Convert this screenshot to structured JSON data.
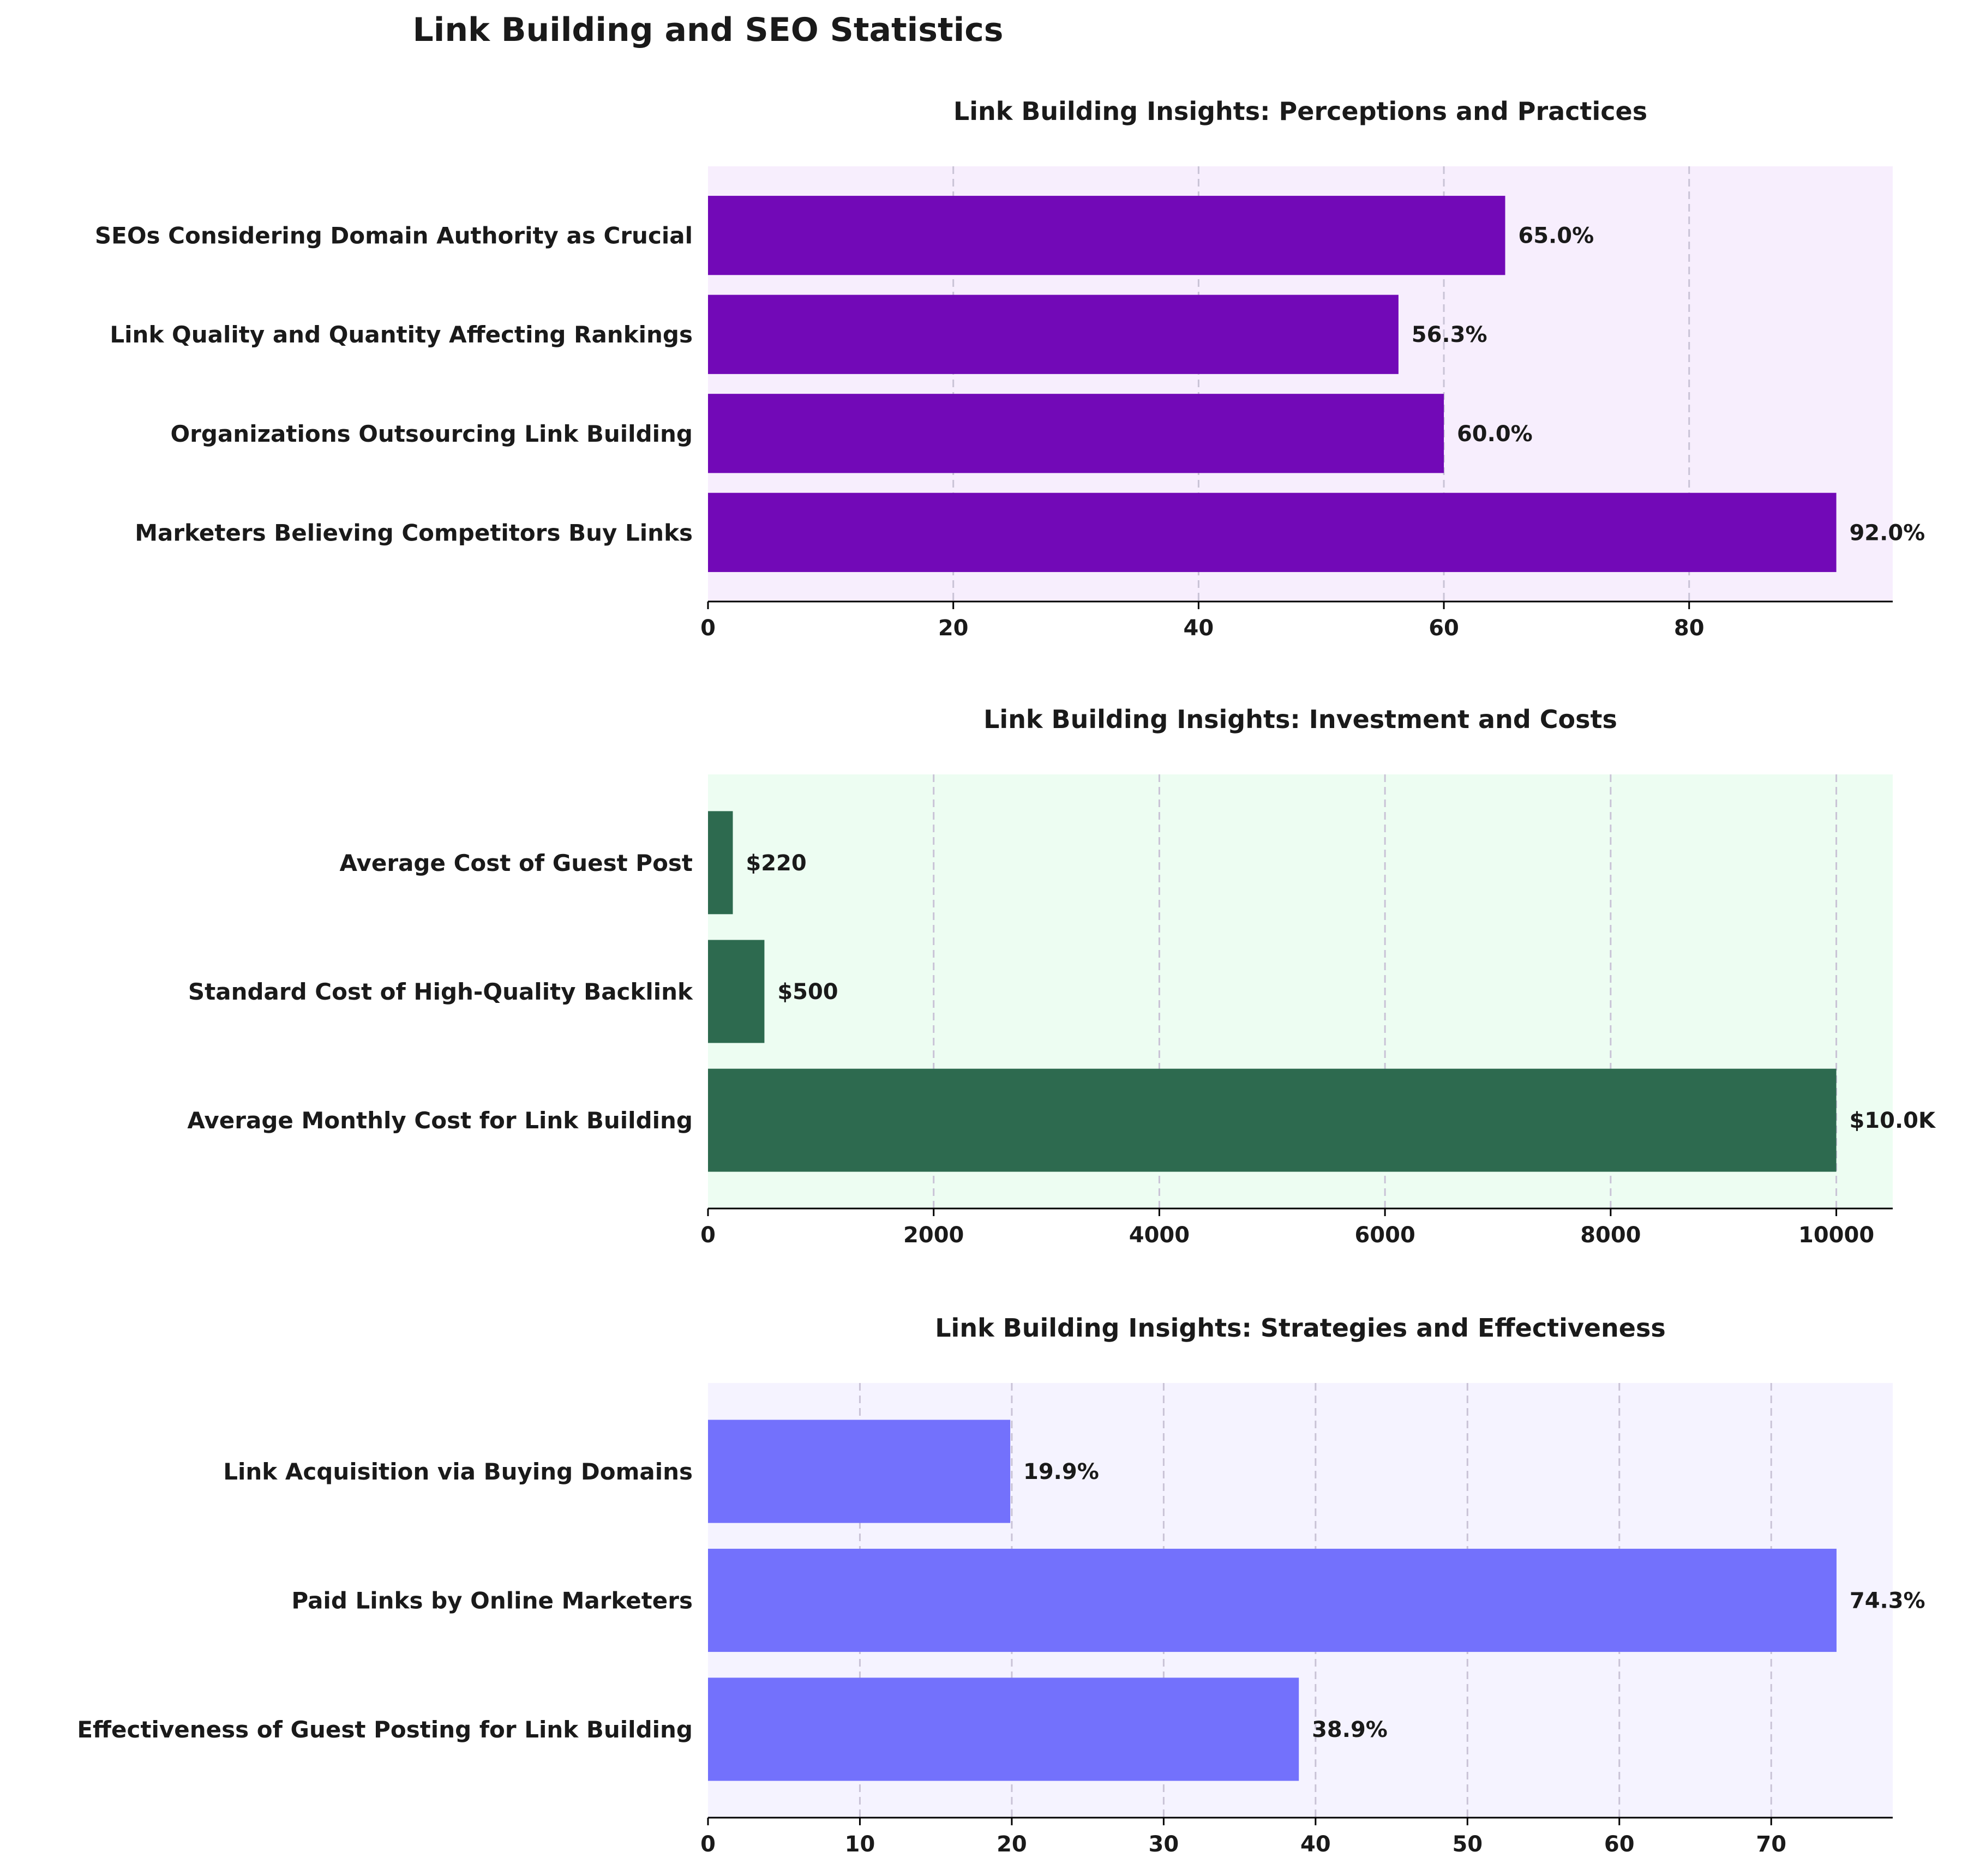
{
  "figure_title": "Link Building and SEO Statistics",
  "chart_data": [
    {
      "type": "bar",
      "orientation": "horizontal",
      "title": "Link Building Insights: Perceptions and Practices",
      "categories": [
        "Marketers Believing Competitors Buy Links",
        "Organizations Outsourcing Link Building",
        "Link Quality and Quantity Affecting Rankings",
        "SEOs Considering Domain Authority as Crucial"
      ],
      "values": [
        92.0,
        60.0,
        56.3,
        65.0
      ],
      "value_labels": [
        "92.0%",
        "60.0%",
        "56.3%",
        "65.0%"
      ],
      "xlim": [
        0,
        96.6
      ],
      "xticks": [
        0,
        20,
        40,
        60,
        80
      ],
      "grid": "vertical dashed",
      "bar_color": "#7209B7",
      "background_color": "#F7EEFD"
    },
    {
      "type": "bar",
      "orientation": "horizontal",
      "title": "Link Building Insights: Investment and Costs",
      "categories": [
        "Average Monthly Cost for Link Building",
        "Standard Cost of High-Quality Backlink",
        "Average Cost of Guest Post"
      ],
      "values": [
        10000,
        500,
        220
      ],
      "value_labels": [
        "$10.0K",
        "$500",
        "$220"
      ],
      "xlim": [
        0,
        10500
      ],
      "xticks": [
        0,
        2000,
        4000,
        6000,
        8000,
        10000
      ],
      "grid": "vertical dashed",
      "bar_color": "#2D6A4F",
      "background_color": "#EDFDF2"
    },
    {
      "type": "bar",
      "orientation": "horizontal",
      "title": "Link Building Insights: Strategies and Effectiveness",
      "categories": [
        "Effectiveness of Guest Posting for Link Building",
        "Paid Links by Online Marketers",
        "Link Acquisition via Buying Domains"
      ],
      "values": [
        38.9,
        74.3,
        19.9
      ],
      "value_labels": [
        "38.9%",
        "74.3%",
        "19.9%"
      ],
      "xlim": [
        0,
        78.0
      ],
      "xticks": [
        0,
        10,
        20,
        30,
        40,
        50,
        60,
        70
      ],
      "grid": "vertical dashed",
      "bar_color": "#7371FC",
      "background_color": "#F5F3FF"
    }
  ]
}
